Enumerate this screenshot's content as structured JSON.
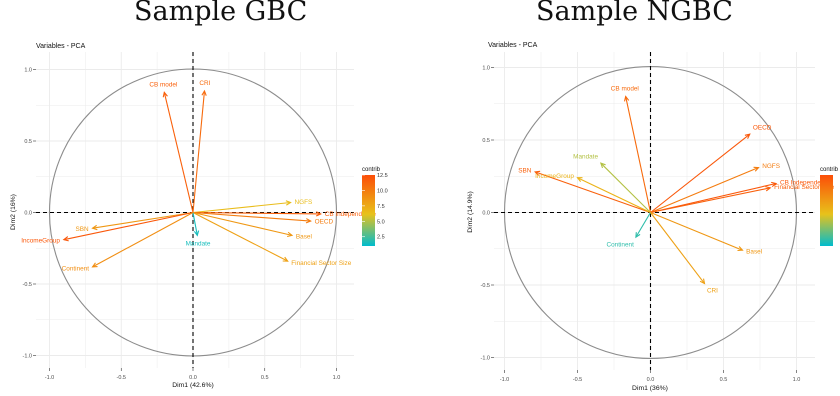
{
  "titles": {
    "left": "Sample GBC",
    "right": "Sample NGBC"
  },
  "legend_ticks_left": [
    "12.5",
    "10.0",
    "7.5",
    "5.0",
    "2.5"
  ],
  "chart_data": [
    {
      "type": "scatter",
      "subtitle": "Variables - PCA",
      "xlabel": "Dim1 (42.6%)",
      "ylabel": "Dim2 (16%)",
      "xlim": [
        -1.1,
        1.1
      ],
      "ylim": [
        -1.05,
        1.05
      ],
      "x_ticks": [
        "-1.0",
        "-0.5",
        "0.0",
        "0.5",
        "1.0"
      ],
      "y_ticks": [
        "1.0",
        "0.5",
        "0.0",
        "-0.5",
        "-1.0"
      ],
      "grid": true,
      "legend": {
        "title": "contrib",
        "position": "right"
      },
      "vectors": [
        {
          "name": "CB model",
          "x": -0.2,
          "y": 0.84,
          "contrib": 11.5
        },
        {
          "name": "CRI",
          "x": 0.08,
          "y": 0.85,
          "contrib": 11.0
        },
        {
          "name": "NGFS",
          "x": 0.68,
          "y": 0.07,
          "contrib": 6.5
        },
        {
          "name": "CB Independence",
          "x": 0.89,
          "y": -0.01,
          "contrib": 11.5
        },
        {
          "name": "OECD",
          "x": 0.82,
          "y": -0.06,
          "contrib": 10.0
        },
        {
          "name": "Basel",
          "x": 0.69,
          "y": -0.16,
          "contrib": 8.5
        },
        {
          "name": "Financial Sector Size",
          "x": 0.66,
          "y": -0.34,
          "contrib": 8.0
        },
        {
          "name": "Mandate",
          "x": 0.03,
          "y": -0.16,
          "contrib": 1.5
        },
        {
          "name": "SBN",
          "x": -0.7,
          "y": -0.11,
          "contrib": 8.5
        },
        {
          "name": "IncomeGroup",
          "x": -0.9,
          "y": -0.19,
          "contrib": 12.0
        },
        {
          "name": "Continent",
          "x": -0.7,
          "y": -0.38,
          "contrib": 9.0
        }
      ]
    },
    {
      "type": "scatter",
      "subtitle": "Variables - PCA",
      "xlabel": "Dim1 (36%)",
      "ylabel": "Dim2 (14.9%)",
      "xlim": [
        -1.1,
        1.1
      ],
      "ylim": [
        -1.05,
        1.05
      ],
      "x_ticks": [
        "-1.0",
        "-0.5",
        "0.0",
        "0.5",
        "1.0"
      ],
      "y_ticks": [
        "1.0",
        "0.5",
        "0.0",
        "-0.5",
        "-1.0"
      ],
      "grid": true,
      "legend": {
        "title": "contrib",
        "position": "right"
      },
      "vectors": [
        {
          "name": "CB model",
          "x": -0.17,
          "y": 0.8,
          "contrib": 11.0
        },
        {
          "name": "OECD",
          "x": 0.68,
          "y": 0.54,
          "contrib": 12.0
        },
        {
          "name": "NGFS",
          "x": 0.74,
          "y": 0.31,
          "contrib": 10.0
        },
        {
          "name": "CB Independence",
          "x": 0.86,
          "y": 0.2,
          "contrib": 12.0
        },
        {
          "name": "Financial Sector Size",
          "x": 0.82,
          "y": 0.17,
          "contrib": 11.5
        },
        {
          "name": "Mandate",
          "x": -0.34,
          "y": 0.34,
          "contrib": 5.0
        },
        {
          "name": "SBN",
          "x": -0.79,
          "y": 0.28,
          "contrib": 11.5
        },
        {
          "name": "IncomeGroup",
          "x": -0.5,
          "y": 0.24,
          "contrib": 7.0
        },
        {
          "name": "Continent",
          "x": -0.1,
          "y": -0.17,
          "contrib": 2.0
        },
        {
          "name": "Basel",
          "x": 0.63,
          "y": -0.26,
          "contrib": 8.5
        },
        {
          "name": "CRI",
          "x": 0.37,
          "y": -0.49,
          "contrib": 8.0
        }
      ]
    }
  ]
}
